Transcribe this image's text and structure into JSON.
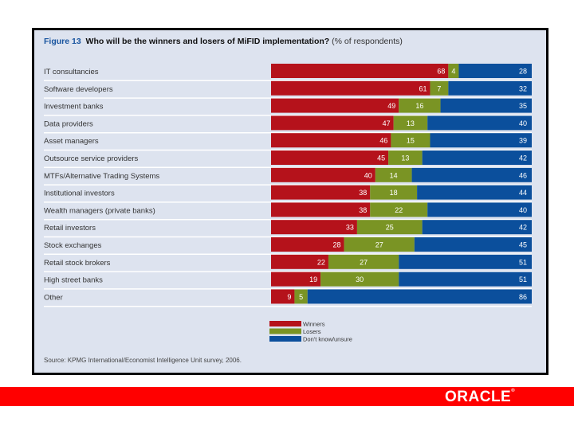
{
  "chart_data": {
    "type": "bar",
    "orientation": "horizontal",
    "stacked": true,
    "figure_label": "Figure 13",
    "title": "Who will be the winners and losers of MiFID implementation?",
    "subtitle": "(% of respondents)",
    "xlabel": "",
    "ylabel": "",
    "xlim": [
      0,
      100
    ],
    "grid": false,
    "legend_position": "bottom-center",
    "categories": [
      "IT consultancies",
      "Software developers",
      "Investment banks",
      "Data providers",
      "Asset managers",
      "Outsource service providers",
      "MTFs/Alternative Trading Systems",
      "Institutional investors",
      "Wealth managers (private banks)",
      "Retail investors",
      "Stock exchanges",
      "Retail stock brokers",
      "High street banks",
      "Other"
    ],
    "series": [
      {
        "name": "Winners",
        "color": "#b5121b",
        "values": [
          68,
          61,
          49,
          47,
          46,
          45,
          40,
          38,
          38,
          33,
          28,
          22,
          19,
          9
        ]
      },
      {
        "name": "Losers",
        "color": "#7a9424",
        "values": [
          4,
          7,
          16,
          13,
          15,
          13,
          14,
          18,
          22,
          25,
          27,
          27,
          30,
          5
        ]
      },
      {
        "name": "Don't know/unsure",
        "color": "#0b4f9c",
        "values": [
          28,
          32,
          35,
          40,
          39,
          42,
          46,
          44,
          40,
          42,
          45,
          51,
          51,
          86
        ]
      }
    ],
    "source": "Source: KPMG International/Economist Intelligence Unit survey, 2006."
  },
  "footer": {
    "brand": "ORACLE",
    "brand_mark": "®",
    "band_color": "#ff0000"
  }
}
